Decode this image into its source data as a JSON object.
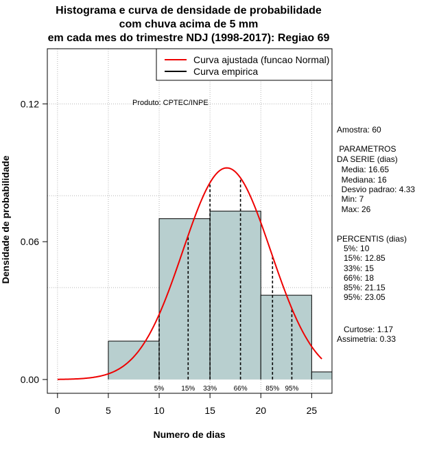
{
  "chart_data": {
    "type": "histogram",
    "title_lines": [
      "Histograma e curva de densidade de probabilidade",
      "com chuva acima de 5 mm",
      "em cada mes do trimestre NDJ (1998-2017): Regiao 69"
    ],
    "xlabel": "Numero de dias",
    "ylabel": "Densidade de probabilidade",
    "xlim": [
      -1,
      27
    ],
    "ylim": [
      -0.006,
      0.144
    ],
    "x_ticks": [
      0,
      5,
      10,
      15,
      20,
      25
    ],
    "y_ticks": [
      0.0,
      0.06,
      0.12
    ],
    "y_tick_labels": [
      "0.00",
      "0.06",
      "0.12"
    ],
    "bins": [
      {
        "start": 5,
        "end": 10,
        "density": 0.0167
      },
      {
        "start": 10,
        "end": 15,
        "density": 0.07
      },
      {
        "start": 15,
        "end": 20,
        "density": 0.0733
      },
      {
        "start": 20,
        "end": 25,
        "density": 0.0367
      },
      {
        "start": 25,
        "end": 27,
        "density": 0.0033
      }
    ],
    "bar_color": "#b8cfcf",
    "curve_color": "#ee0000",
    "normal_fit": {
      "mean": 16.65,
      "sd": 4.33,
      "x_range": [
        0,
        26
      ]
    },
    "percentiles": [
      {
        "label": "5%",
        "value": 10
      },
      {
        "label": "15%",
        "value": 12.85
      },
      {
        "label": "33%",
        "value": 15
      },
      {
        "label": "66%",
        "value": 18
      },
      {
        "label": "85%",
        "value": 21.15
      },
      {
        "label": "95%",
        "value": 23.05
      }
    ],
    "legend": {
      "position": "top-right",
      "entries": [
        {
          "label": "Curva ajustada (funcao Normal)",
          "color": "#ee0000"
        },
        {
          "label": "Curva empirica",
          "color": "#000000"
        }
      ]
    },
    "product_label": "Produto: CPTEC/INPE"
  },
  "stats": {
    "amostra": "Amostra: 60",
    "parametros_header_1": " PARAMETROS",
    "parametros_header_2": "DA SERIE (dias)",
    "media": "  Media: 16.65",
    "mediana": "  Mediana: 16",
    "desvio": "  Desvio padrao: 4.33",
    "min": "  Min: 7",
    "max": "  Max: 26",
    "percentis_header": "PERCENTIS (dias)",
    "p5": "   5%: 10",
    "p15": "   15%: 12.85",
    "p33": "   33%: 15",
    "p66": "   66%: 18",
    "p85": "   85%: 21.15",
    "p95": "   95%: 23.05",
    "curtose": "   Curtose: 1.17",
    "assimetria": "Assimetria: 0.33"
  }
}
